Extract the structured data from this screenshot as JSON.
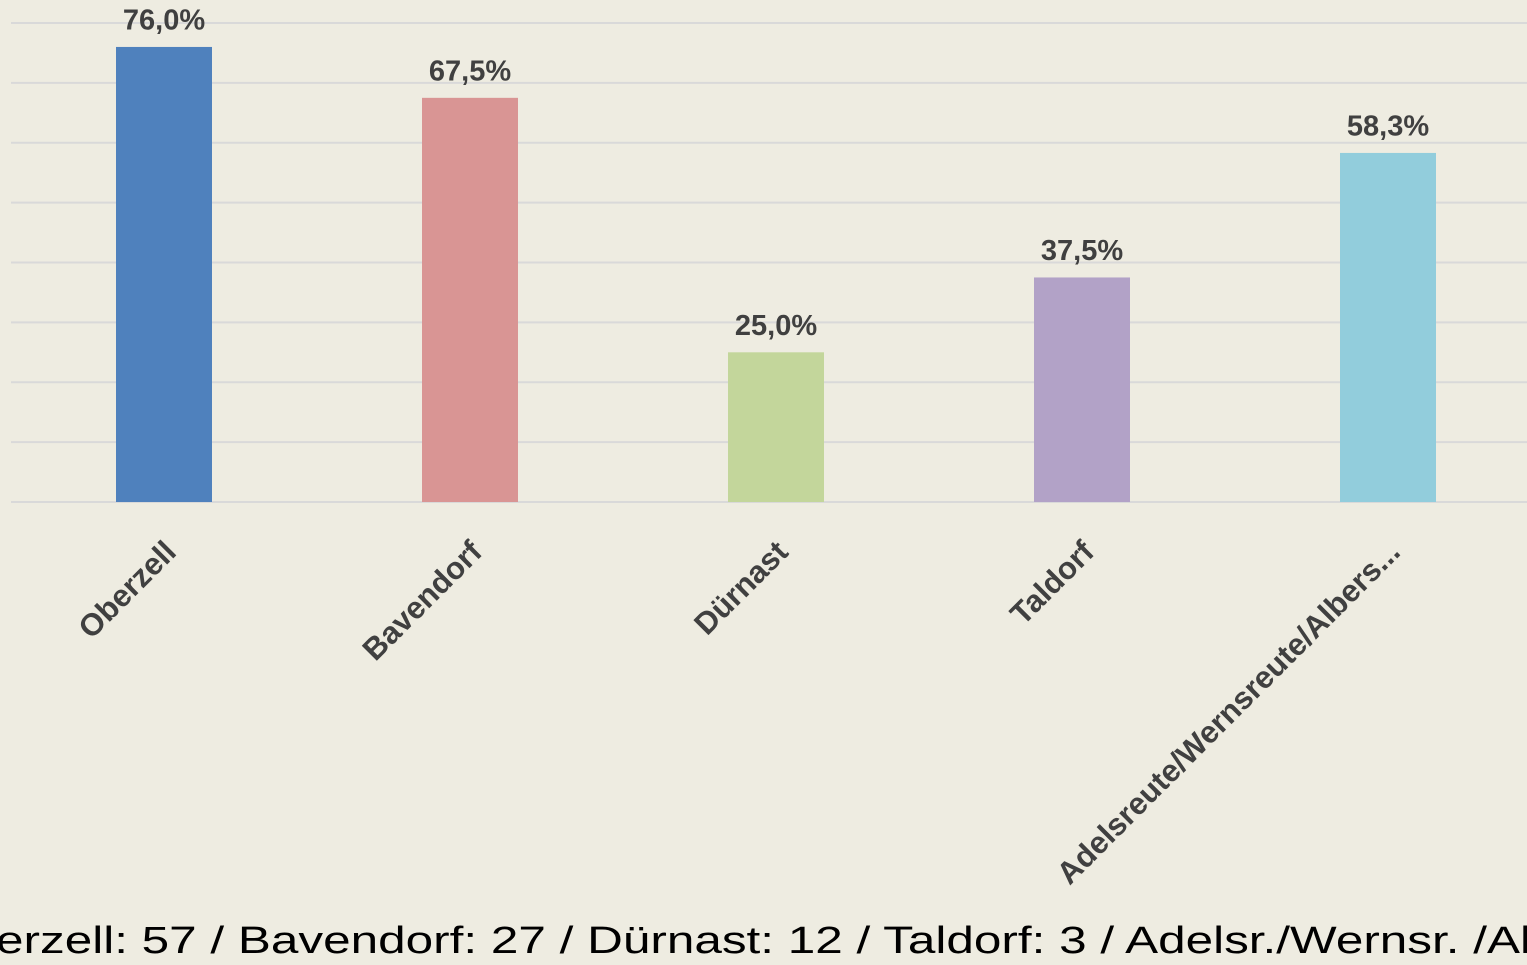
{
  "chart_data": {
    "type": "bar",
    "categories": [
      "Oberzell",
      "Bavendorf",
      "Dürnast",
      "Taldorf",
      "Adelsreute/Wernsreute/Albers..."
    ],
    "values": [
      76.0,
      67.5,
      25.0,
      37.5,
      58.3
    ],
    "value_labels": [
      "76,0%",
      "67,5%",
      "25,0%",
      "37,5%",
      "58,3%"
    ],
    "colors": [
      "#4f81bd",
      "#d99594",
      "#c3d69b",
      "#b2a2c7",
      "#92cddc"
    ],
    "ylim": [
      0,
      80
    ],
    "yticks": [
      0,
      10,
      20,
      30,
      40,
      50,
      60,
      70,
      80
    ],
    "grid": true,
    "footnote": "erzell: 57 / Bavendorf: 27 / Dürnast: 12 / Taldorf:  3 / Adelsr./Wernsr. /Al"
  }
}
